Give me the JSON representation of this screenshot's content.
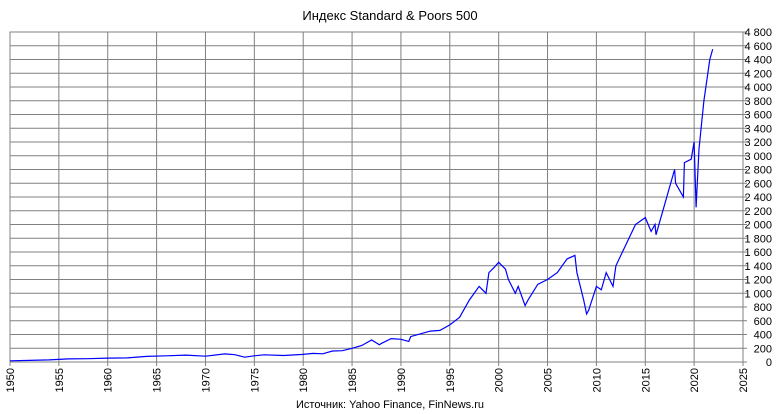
{
  "chart_data": {
    "type": "line",
    "title": "Индекс Standard & Poors 500",
    "source_note": "Источник:  Yahoo Finance, FinNews.ru",
    "xlabel": "",
    "ylabel": "",
    "xlim": [
      1950,
      2025
    ],
    "ylim": [
      0,
      4800
    ],
    "x_ticks": [
      "1950",
      "1955",
      "1960",
      "1965",
      "1970",
      "1975",
      "1980",
      "1985",
      "1990",
      "1995",
      "2000",
      "2005",
      "2010",
      "2015",
      "2020",
      "2025"
    ],
    "y_ticks": [
      "0",
      "200",
      "400",
      "600",
      "800",
      "1 000",
      "1 200",
      "1 400",
      "1 600",
      "1 800",
      "2 000",
      "2 200",
      "2 400",
      "2 600",
      "2 800",
      "3 000",
      "3 200",
      "3 400",
      "3 600",
      "3 800",
      "4 000",
      "4 200",
      "4 400",
      "4 600",
      "4 800"
    ],
    "grid": true,
    "legend": "none",
    "line_color": "#0000ff",
    "series": [
      {
        "x": [
          1950,
          1952,
          1954,
          1956,
          1958,
          1960,
          1962,
          1964,
          1966,
          1968,
          1970,
          1972,
          1973,
          1974,
          1975,
          1976,
          1978,
          1980,
          1981,
          1982,
          1983,
          1984,
          1985,
          1986,
          1987,
          1987.8,
          1988,
          1989,
          1990,
          1990.8,
          1991,
          1992,
          1993,
          1994,
          1995,
          1996,
          1997,
          1998,
          1998.7,
          1999,
          1999.5,
          2000,
          2000.7,
          2001,
          2001.7,
          2002,
          2002.7,
          2003,
          2004,
          2005,
          2006,
          2007,
          2007.8,
          2008,
          2008.7,
          2009,
          2009.2,
          2010,
          2010.5,
          2011,
          2011.7,
          2012,
          2013,
          2014,
          2015,
          2015.6,
          2016,
          2016.1,
          2017,
          2018,
          2018.1,
          2018.9,
          2019,
          2019.7,
          2020,
          2020.2,
          2020.5,
          2021,
          2021.6,
          2021.9
        ],
        "y": [
          17,
          24,
          30,
          45,
          48,
          57,
          60,
          82,
          90,
          100,
          85,
          118,
          106,
          70,
          90,
          105,
          95,
          110,
          125,
          120,
          160,
          165,
          200,
          240,
          320,
          250,
          270,
          340,
          330,
          300,
          370,
          410,
          450,
          460,
          540,
          650,
          900,
          1100,
          1000,
          1300,
          1370,
          1450,
          1350,
          1200,
          1000,
          1100,
          820,
          900,
          1130,
          1200,
          1300,
          1500,
          1550,
          1300,
          900,
          700,
          750,
          1100,
          1050,
          1300,
          1100,
          1400,
          1700,
          2000,
          2100,
          1900,
          2000,
          1850,
          2300,
          2800,
          2600,
          2400,
          2900,
          2950,
          3200,
          2250,
          3100,
          3800,
          4400,
          4550
        ]
      }
    ]
  }
}
